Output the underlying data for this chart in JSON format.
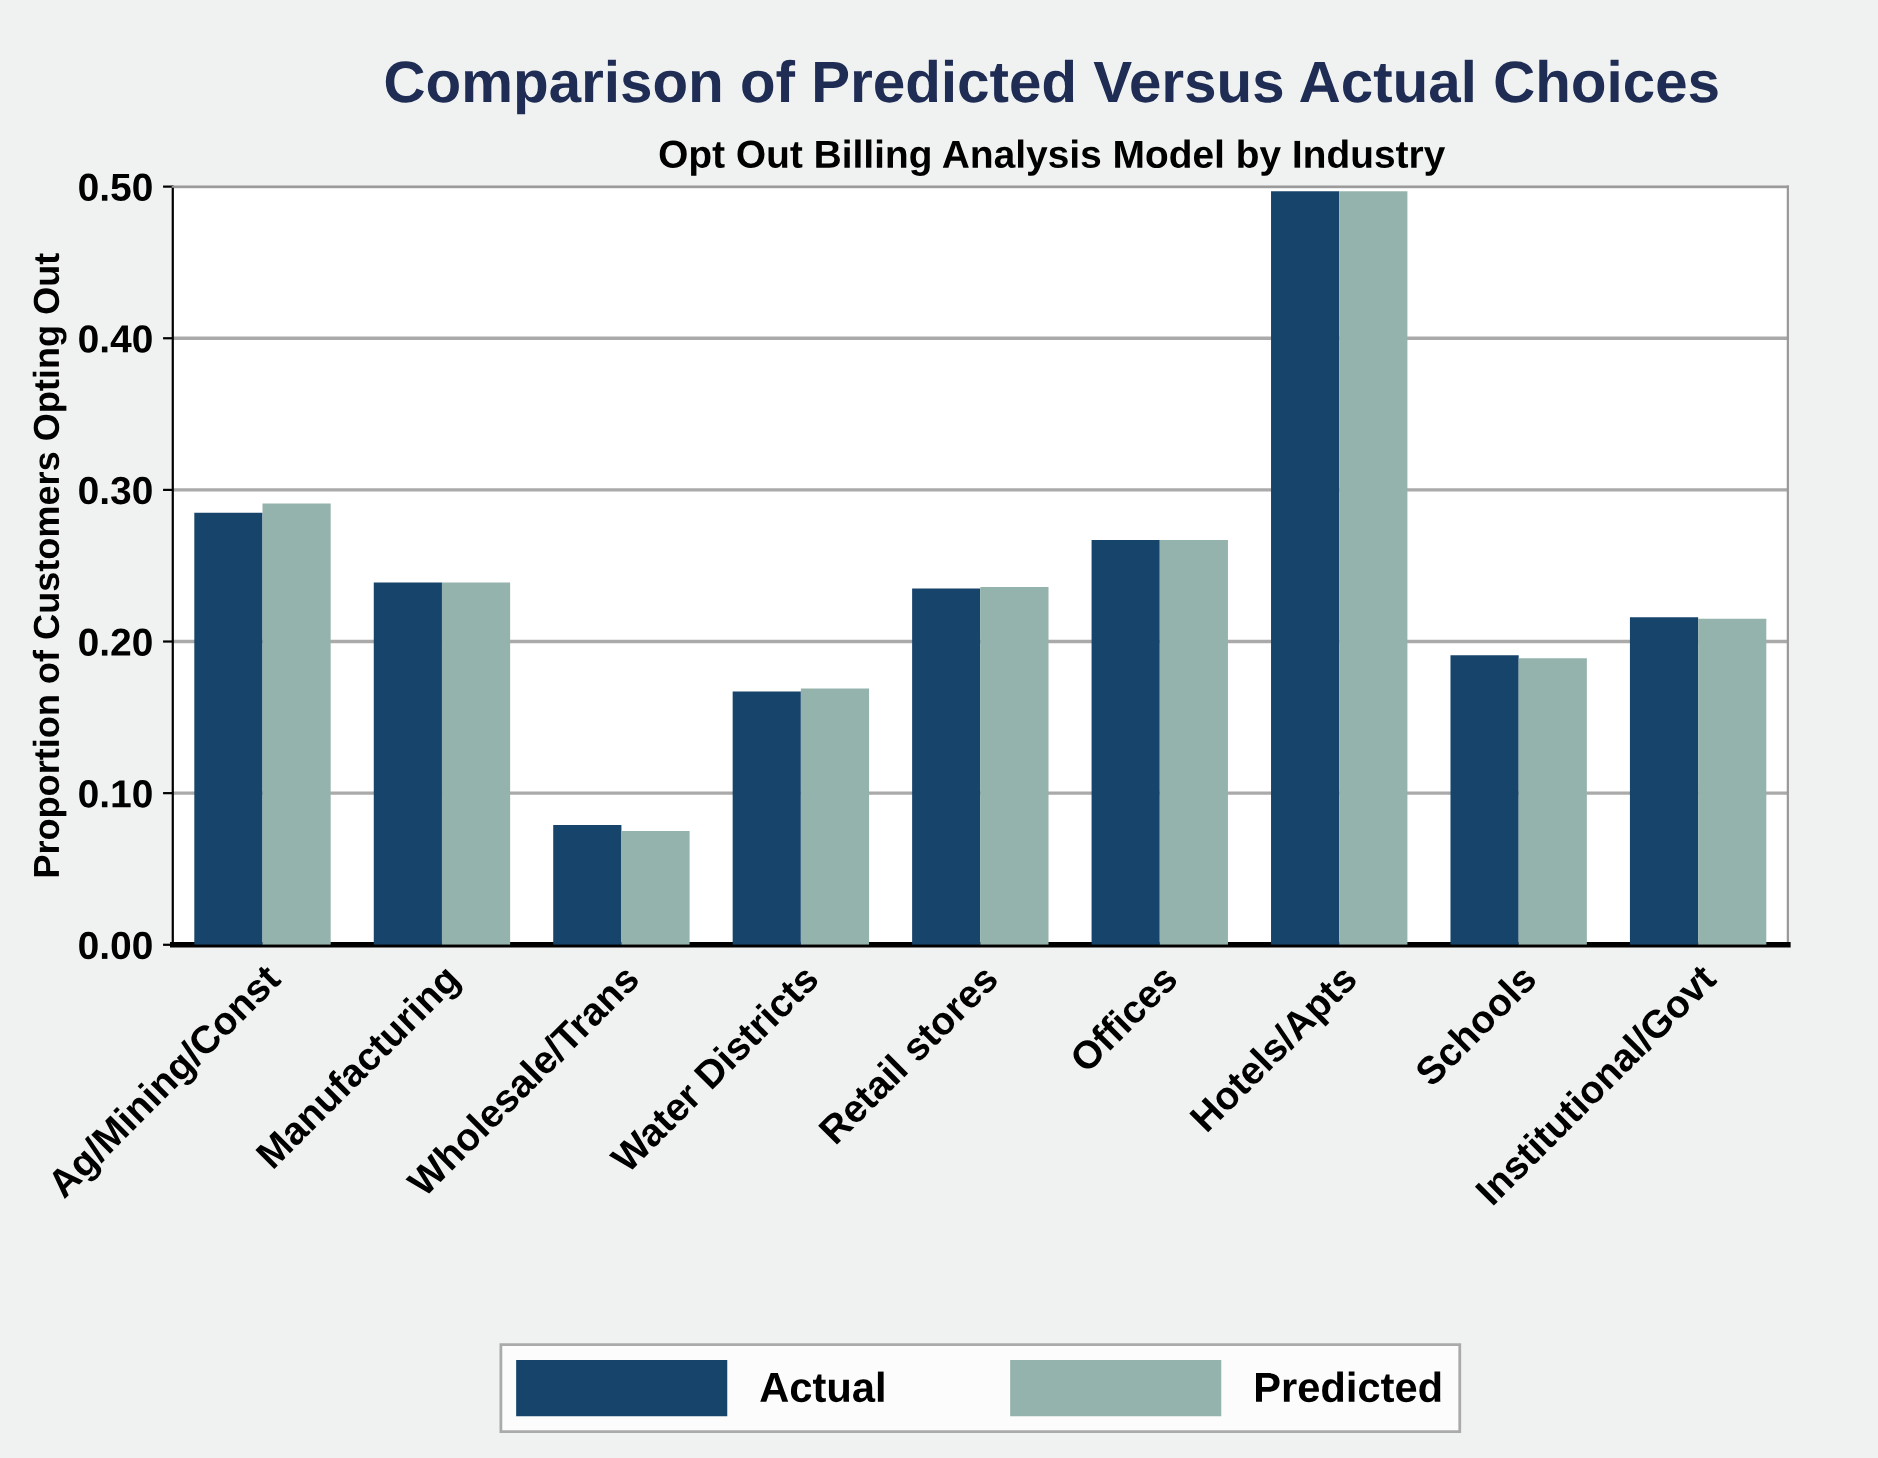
{
  "chart_data": {
    "type": "bar",
    "title": "Comparison of Predicted Versus Actual Choices",
    "subtitle": "Opt Out Billing Analysis Model by Industry",
    "ylabel": "Proportion of Customers Opting Out",
    "categories": [
      "Ag/Mining/Const",
      "Manufacturing",
      "Wholesale/Trans",
      "Water Districts",
      "Retail stores",
      "Offices",
      "Hotels/Apts",
      "Schools",
      "Institutional/Govt"
    ],
    "series": [
      {
        "name": "Actual",
        "color": "#17446b",
        "values": [
          0.285,
          0.239,
          0.079,
          0.167,
          0.235,
          0.267,
          0.497,
          0.191,
          0.216
        ]
      },
      {
        "name": "Predicted",
        "color": "#95b3ad",
        "values": [
          0.291,
          0.239,
          0.075,
          0.169,
          0.236,
          0.267,
          0.497,
          0.189,
          0.215
        ]
      }
    ],
    "ylim": [
      0,
      0.5
    ],
    "yticks": [
      {
        "value": 0,
        "label": "0.00"
      },
      {
        "value": 0.1,
        "label": "0.10"
      },
      {
        "value": 0.2,
        "label": "0.20"
      },
      {
        "value": 0.3,
        "label": "0.30"
      },
      {
        "value": 0.4,
        "label": "0.40"
      },
      {
        "value": 0.5,
        "label": "0.50"
      }
    ],
    "grid": "y",
    "legend": "bottom"
  }
}
